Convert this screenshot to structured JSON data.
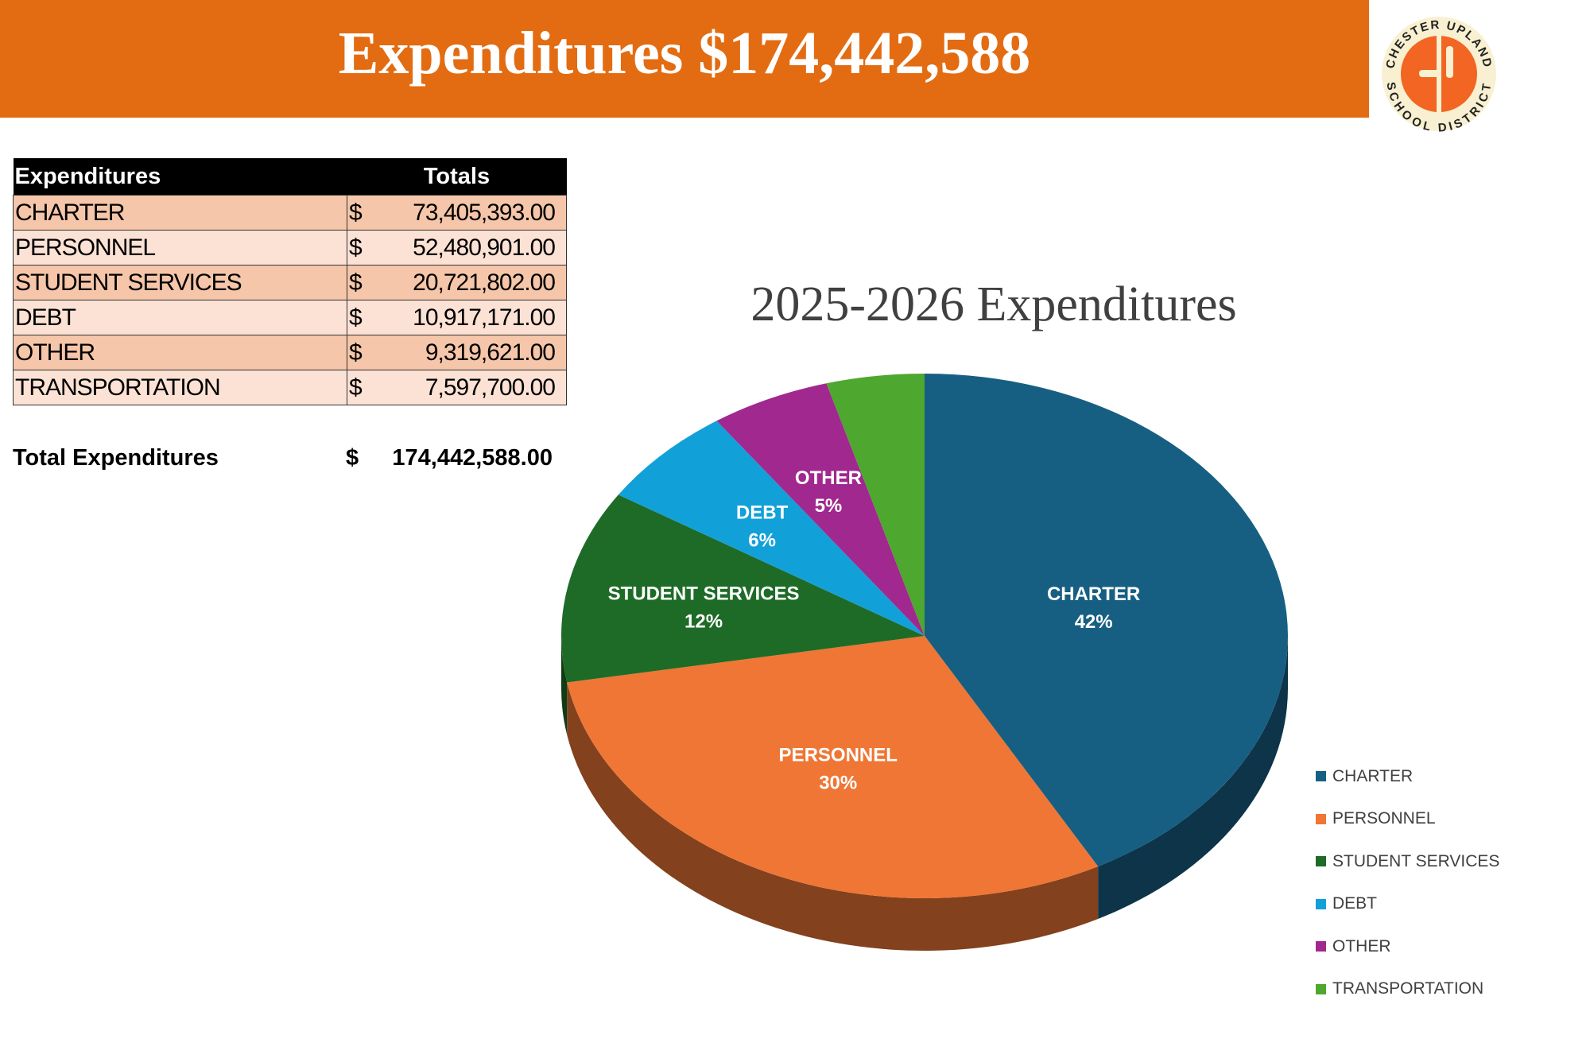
{
  "banner": {
    "title": "Expenditures $174,442,588"
  },
  "logo": {
    "top_text": "CHESTER UPLAND",
    "bottom_text": "SCHOOL DISTRICT",
    "color": "#f26522"
  },
  "table": {
    "headers": [
      "Expenditures",
      "Totals"
    ],
    "rows": [
      {
        "name": "CHARTER",
        "currency": "$",
        "amount": "73,405,393.00"
      },
      {
        "name": "PERSONNEL",
        "currency": "$",
        "amount": "52,480,901.00"
      },
      {
        "name": "STUDENT SERVICES",
        "currency": "$",
        "amount": "20,721,802.00"
      },
      {
        "name": "DEBT",
        "currency": "$",
        "amount": "10,917,171.00"
      },
      {
        "name": "OTHER",
        "currency": "$",
        "amount": "9,319,621.00"
      },
      {
        "name": "TRANSPORTATION",
        "currency": "$",
        "amount": "7,597,700.00"
      }
    ],
    "total": {
      "label": "Total Expenditures",
      "currency": "$",
      "amount": "174,442,588.00"
    }
  },
  "chart_data": {
    "type": "pie",
    "style": "3d",
    "title": "2025-2026 Expenditures",
    "categories": [
      "CHARTER",
      "PERSONNEL",
      "STUDENT SERVICES",
      "DEBT",
      "OTHER",
      "TRANSPORTATION"
    ],
    "values": [
      73405393,
      52480901,
      20721802,
      10917171,
      9319621,
      7597700
    ],
    "labels": [
      "42%",
      "30%",
      "12%",
      "6%",
      "5%",
      ""
    ],
    "colors": [
      "#175f82",
      "#ef7634",
      "#1e6b27",
      "#12a0d8",
      "#a0288f",
      "#4ea72e"
    ],
    "legend": "right"
  }
}
